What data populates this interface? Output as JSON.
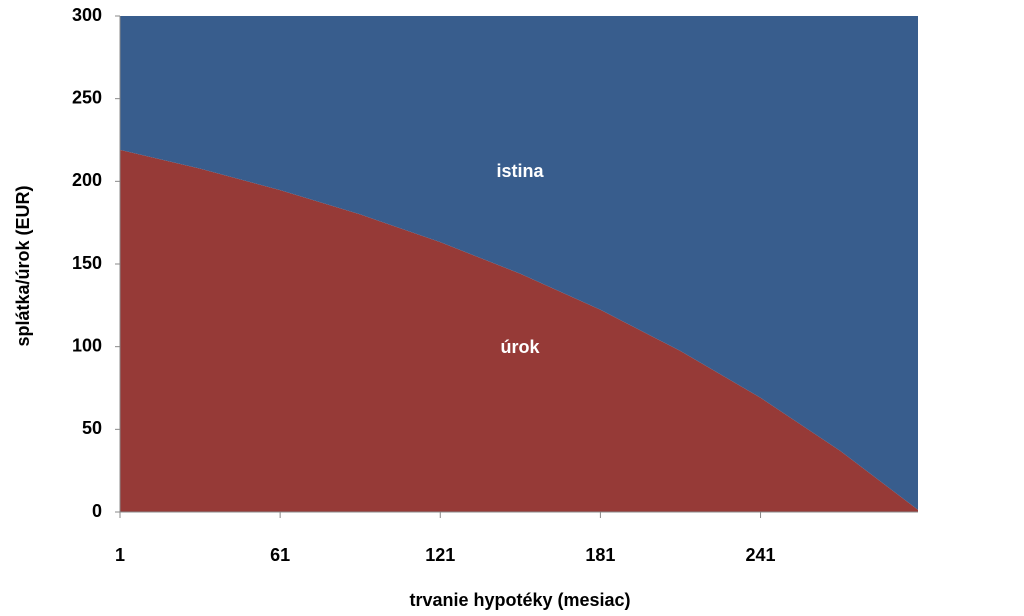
{
  "chart_data": {
    "type": "stacked-area",
    "x_label": "trvanie hypotéky (mesiac)",
    "y_label": "splátka/úrok (EUR)",
    "x": [
      1,
      31,
      61,
      91,
      121,
      151,
      181,
      211,
      241,
      271,
      300
    ],
    "series": [
      {
        "name": "úrok",
        "color": "#963a37",
        "values": [
          219.0,
          207.7,
          194.7,
          180.0,
          163.2,
          144.1,
          122.3,
          97.4,
          69.1,
          36.8,
          1.3
        ]
      },
      {
        "name": "istina",
        "color": "#385d8d",
        "values": [
          81.0,
          92.3,
          105.3,
          120.0,
          136.8,
          155.9,
          177.7,
          202.6,
          230.9,
          263.2,
          298.7
        ]
      }
    ],
    "xlim": [
      1,
      300
    ],
    "xticks": [
      1,
      61,
      121,
      181,
      241
    ],
    "ylim": [
      0,
      300
    ],
    "yticks": [
      0,
      50,
      100,
      150,
      200,
      250,
      300
    ]
  }
}
